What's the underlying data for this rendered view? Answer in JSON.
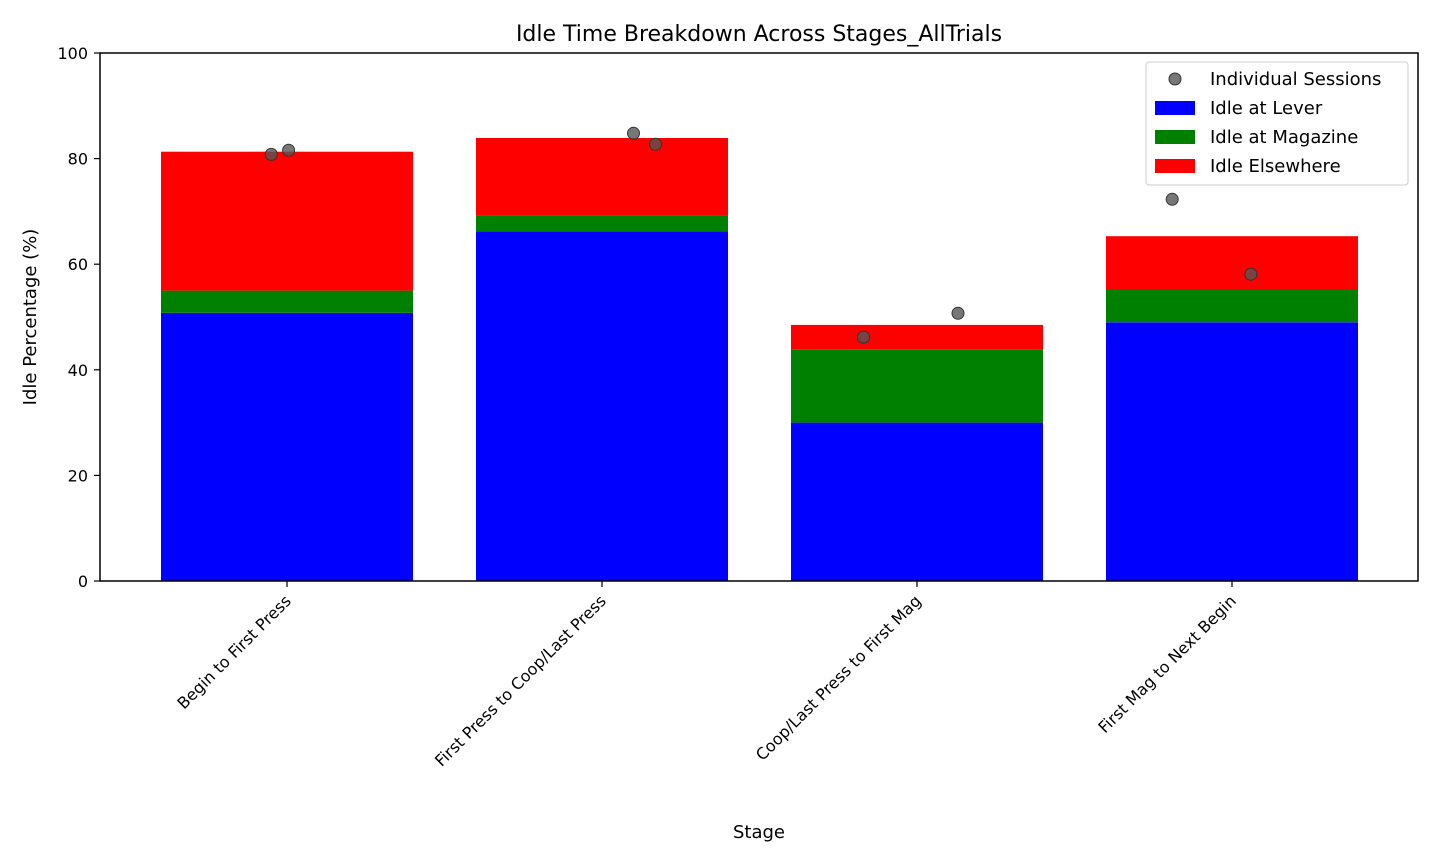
{
  "chart_data": {
    "type": "bar",
    "stacked": true,
    "title": "Idle Time Breakdown Across Stages_AllTrials",
    "xlabel": "Stage",
    "ylabel": "Idle Percentage (%)",
    "ylim": [
      0,
      100
    ],
    "yticks": [
      "0",
      "20",
      "40",
      "60",
      "80",
      "100"
    ],
    "grid": false,
    "legend_position": "top-right",
    "categories": [
      "Begin to First Press",
      "First Press to Coop/Last Press",
      "Coop/Last Press to First Mag",
      "First Mag to Next Begin"
    ],
    "series": [
      {
        "name": "Idle at Lever",
        "color": "#0000ff",
        "values": [
          50.8,
          66.2,
          30.0,
          49.0
        ]
      },
      {
        "name": "Idle at Magazine",
        "color": "#008000",
        "values": [
          4.2,
          3.0,
          13.9,
          6.2
        ]
      },
      {
        "name": "Idle Elsewhere",
        "color": "#ff0000",
        "values": [
          26.3,
          14.7,
          4.6,
          10.1
        ]
      }
    ],
    "scatter": {
      "name": "Individual Sessions",
      "color": "#555555",
      "points": [
        {
          "category_index": 0,
          "offset": -0.05,
          "value": 80.8
        },
        {
          "category_index": 0,
          "offset": 0.005,
          "value": 81.6
        },
        {
          "category_index": 1,
          "offset": 0.1,
          "value": 84.8
        },
        {
          "category_index": 1,
          "offset": 0.17,
          "value": 82.7
        },
        {
          "category_index": 2,
          "offset": -0.17,
          "value": 46.2
        },
        {
          "category_index": 2,
          "offset": 0.13,
          "value": 50.7
        },
        {
          "category_index": 3,
          "offset": -0.19,
          "value": 72.3
        },
        {
          "category_index": 3,
          "offset": 0.06,
          "value": 58.1
        }
      ]
    }
  }
}
